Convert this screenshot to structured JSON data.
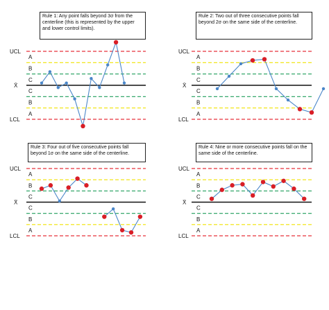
{
  "colors": {
    "control_limit": "#e8323a",
    "zone_b_line": "#f0e200",
    "zone_c_line": "#1e9e5a",
    "centerline": "#111111",
    "series_line": "#4a86c8",
    "normal_point": "#4a86c8",
    "signal_point": "#d91e26"
  },
  "labels": {
    "ucl": "UCL",
    "lcl": "LCL",
    "center": "X̄",
    "zones_upper": [
      "A",
      "B",
      "C"
    ],
    "zones_lower": [
      "C",
      "B",
      "A"
    ]
  },
  "chart_data": [
    {
      "type": "line",
      "rule_text": "Rule 1: Any point falls beyond 3σ from the centerline (this is represented by the upper and lower control limits).",
      "levels": {
        "ucl": 3,
        "center": 0,
        "lcl": -3
      },
      "ylim": [
        -3.4,
        3.4
      ],
      "series": [
        {
          "x": [
            1,
            2,
            3,
            4,
            5,
            6,
            7,
            8,
            9,
            10
          ],
          "y": [
            0.2,
            1.2,
            -0.2,
            0.2,
            -1.2,
            -3.6,
            0.6,
            -0.2,
            1.8,
            3.8
          ],
          "signal": [
            false,
            false,
            false,
            false,
            false,
            true,
            false,
            false,
            false,
            true
          ]
        }
      ],
      "last_point": {
        "x": 11,
        "y": 0.2
      }
    },
    {
      "type": "line",
      "rule_text": "Rule 2: Two out of three consecutive points fall beyond 2σ on the same side of the centerline.",
      "levels": {
        "ucl": 3,
        "center": 0,
        "lcl": -3
      },
      "ylim": [
        -3.4,
        3.4
      ],
      "series": [
        {
          "x": [
            1,
            2,
            3,
            4,
            5,
            6,
            7,
            8,
            9
          ],
          "y": [
            -0.3,
            0.8,
            1.9,
            2.2,
            2.3,
            -0.3,
            -1.3,
            -2.1,
            -2.4
          ],
          "signal": [
            false,
            false,
            false,
            true,
            true,
            false,
            false,
            true,
            true
          ]
        }
      ],
      "last_point": {
        "x": 10,
        "y": -0.3
      }
    },
    {
      "type": "line",
      "rule_text": "Rule 3: Four out of five consecutive points fall beyond 1σ on the same side of the centerline.",
      "levels": {
        "ucl": 3,
        "center": 0,
        "lcl": -3
      },
      "ylim": [
        -3.4,
        3.4
      ],
      "series": [
        {
          "x": [
            1,
            2,
            3,
            4,
            5,
            6,
            7,
            8,
            9,
            10,
            11,
            12
          ],
          "y": [
            1.2,
            1.5,
            0.1,
            1.3,
            2.1,
            1.5,
            null,
            -1.3,
            -0.6,
            -2.5,
            -2.7,
            -1.3
          ],
          "signal": [
            true,
            true,
            false,
            true,
            true,
            true,
            false,
            true,
            false,
            true,
            true,
            true
          ]
        }
      ]
    },
    {
      "type": "line",
      "rule_text": "Rule 4: Nine or more consecutive points fall on the same side of the centerline.",
      "levels": {
        "ucl": 3,
        "center": 0,
        "lcl": -3
      },
      "ylim": [
        -3.4,
        3.4
      ],
      "series": [
        {
          "x": [
            1,
            2,
            3,
            4,
            5,
            6,
            7,
            8,
            9,
            10
          ],
          "y": [
            0.3,
            1.1,
            1.5,
            1.6,
            0.6,
            1.8,
            1.4,
            1.9,
            1.2,
            0.3
          ],
          "signal": [
            true,
            true,
            true,
            true,
            true,
            true,
            true,
            true,
            true,
            true
          ]
        }
      ]
    }
  ]
}
